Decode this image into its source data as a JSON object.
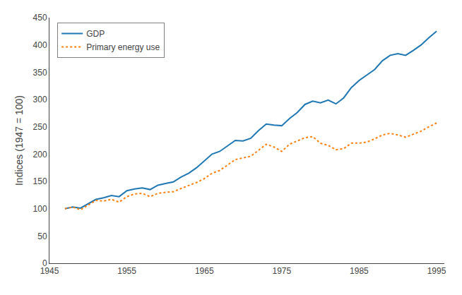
{
  "chart_data": {
    "type": "line",
    "ylabel": "Indices (1947 = 100)",
    "x": [
      1947,
      1948,
      1949,
      1950,
      1951,
      1952,
      1953,
      1954,
      1955,
      1956,
      1957,
      1958,
      1959,
      1960,
      1961,
      1962,
      1963,
      1964,
      1965,
      1966,
      1967,
      1968,
      1969,
      1970,
      1971,
      1972,
      1973,
      1974,
      1975,
      1976,
      1977,
      1978,
      1979,
      1980,
      1981,
      1982,
      1983,
      1984,
      1985,
      1986,
      1987,
      1988,
      1989,
      1990,
      1991,
      1992,
      1993,
      1994,
      1995
    ],
    "series": [
      {
        "name": "GDP",
        "line_style": "solid",
        "values": [
          100,
          103,
          101,
          109,
          117,
          120,
          124,
          122,
          133,
          136,
          138,
          135,
          143,
          146,
          149,
          158,
          165,
          175,
          188,
          200,
          205,
          215,
          225,
          224,
          229,
          243,
          255,
          253,
          252,
          265,
          276,
          291,
          297,
          294,
          299,
          292,
          303,
          322,
          335,
          345,
          355,
          371,
          381,
          384,
          381,
          390,
          400,
          413,
          425
        ]
      },
      {
        "name": "Primary energy use",
        "line_style": "dotted",
        "values": [
          100,
          103,
          98,
          107,
          115,
          114,
          117,
          112,
          122,
          127,
          128,
          122,
          128,
          130,
          131,
          137,
          142,
          148,
          155,
          165,
          170,
          180,
          190,
          193,
          196,
          207,
          218,
          213,
          205,
          218,
          224,
          230,
          232,
          220,
          216,
          208,
          210,
          220,
          220,
          222,
          228,
          235,
          238,
          235,
          231,
          237,
          242,
          250,
          257
        ]
      }
    ],
    "xlim": [
      1945,
      1996
    ],
    "ylim": [
      0,
      450
    ],
    "xticks": [
      1945,
      1955,
      1965,
      1975,
      1985,
      1995
    ],
    "yticks": [
      0,
      50,
      100,
      150,
      200,
      250,
      300,
      350,
      400,
      450
    ],
    "legend": "upper left",
    "grid": false
  }
}
